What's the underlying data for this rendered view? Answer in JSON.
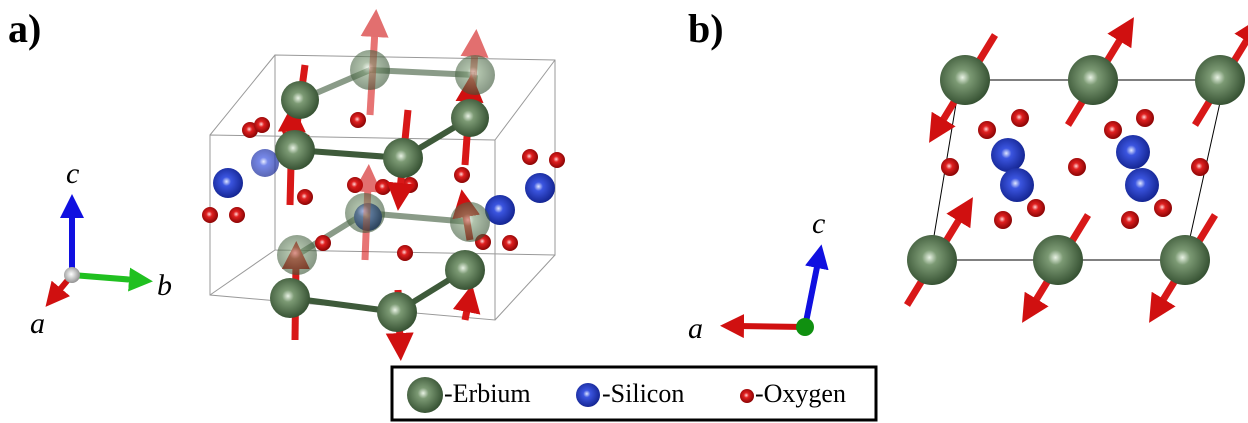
{
  "panel_a": {
    "label": "a)",
    "axes": {
      "a": "a",
      "b": "b",
      "c": "c"
    }
  },
  "panel_b": {
    "label": "b)",
    "axes": {
      "a": "a",
      "c": "c"
    }
  },
  "legend": {
    "items": [
      "-Erbium",
      "-Silicon",
      "-Oxygen"
    ]
  }
}
